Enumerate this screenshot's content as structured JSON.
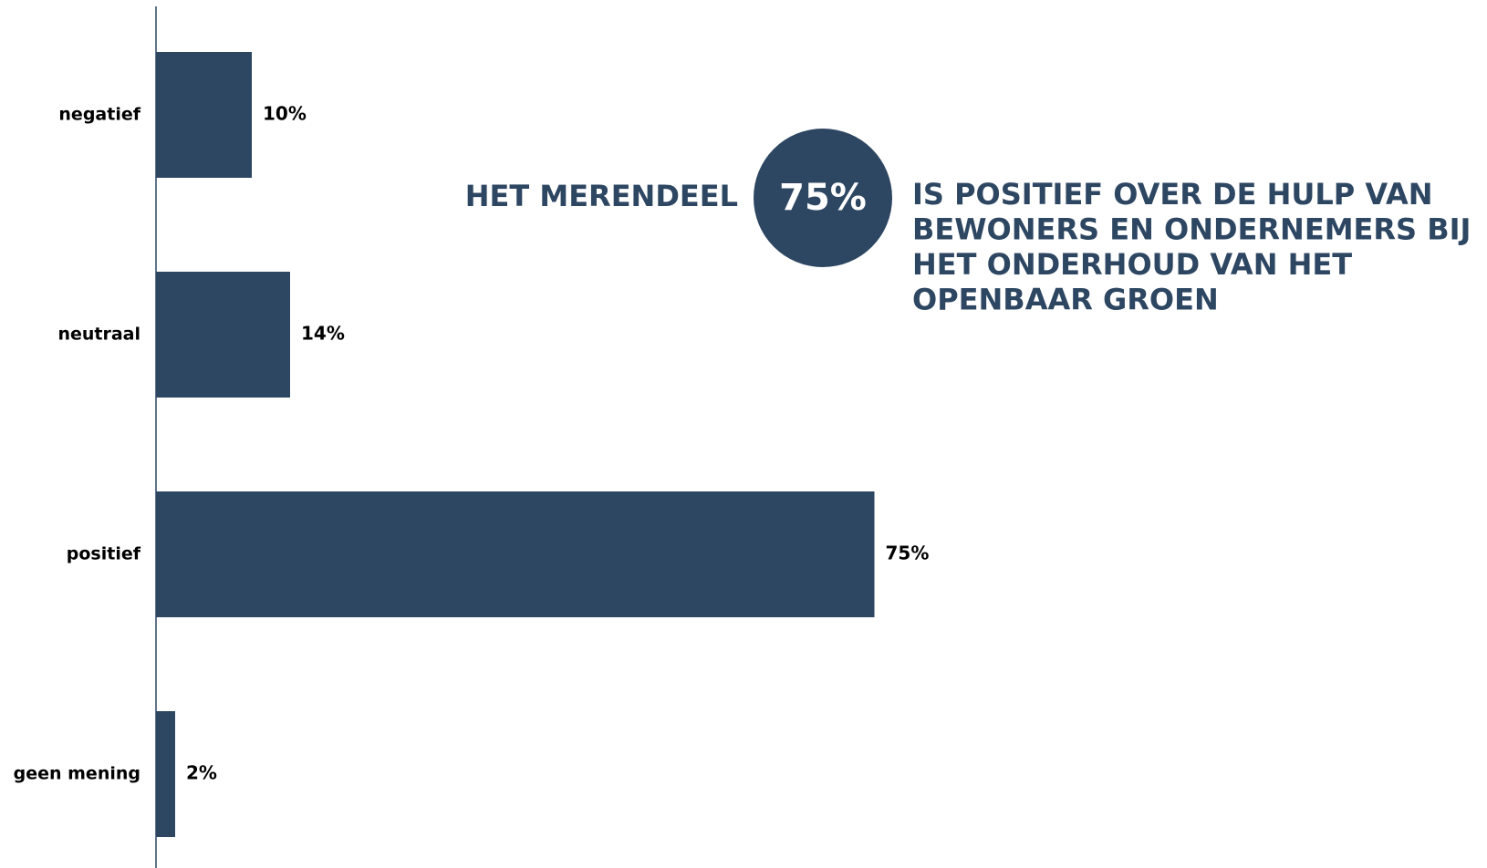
{
  "chart_data": {
    "type": "hbar",
    "categories": [
      "negatief",
      "neutraal",
      "positief",
      "geen mening"
    ],
    "values": [
      10,
      14,
      75,
      2
    ],
    "value_labels": [
      "10%",
      "14%",
      "75%",
      "2%"
    ],
    "color": "#2d4662",
    "xlim": [
      0,
      100
    ],
    "annotation": {
      "lead": "HET MERENDEEL",
      "highlight": "75%",
      "text": [
        "IS POSITIEF OVER DE HULP VAN",
        "BEWONERS EN ONDERNEMERS BIJ",
        "HET ONDERHOUD VAN HET",
        "OPENBAAR GROEN"
      ]
    }
  }
}
